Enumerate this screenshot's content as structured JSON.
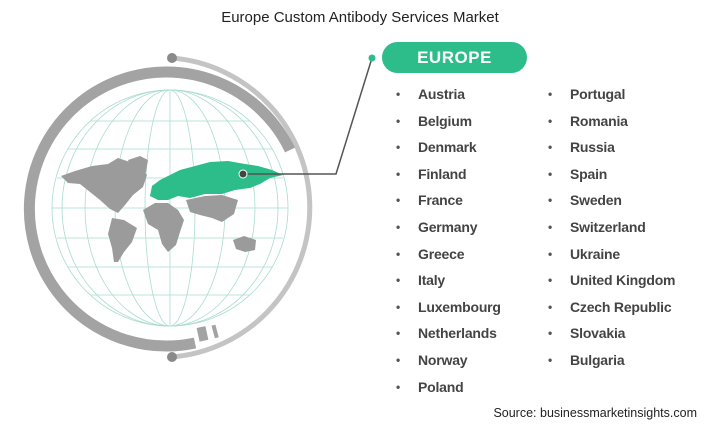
{
  "title": "Europe Custom Antibody Services Market",
  "region_label": "EUROPE",
  "colors": {
    "accent": "#2dbd8a",
    "land": "#9b9b9b",
    "ring_dark": "#999999",
    "ring_light": "#c4c4c4",
    "grid": "#9fd6c9"
  },
  "countries_left": [
    "Austria",
    "Belgium",
    "Denmark",
    "Finland",
    "France",
    "Germany",
    "Greece",
    "Italy",
    "Luxembourg",
    "Netherlands",
    "Norway",
    "Poland"
  ],
  "countries_right": [
    "Portugal",
    "Romania",
    "Russia",
    "Spain",
    "Sweden",
    "Switzerland",
    "Ukraine",
    "United Kingdom",
    "Czech Republic",
    "Slovakia",
    "Bulgaria"
  ],
  "source": "Source: businessmarketinsights.com"
}
